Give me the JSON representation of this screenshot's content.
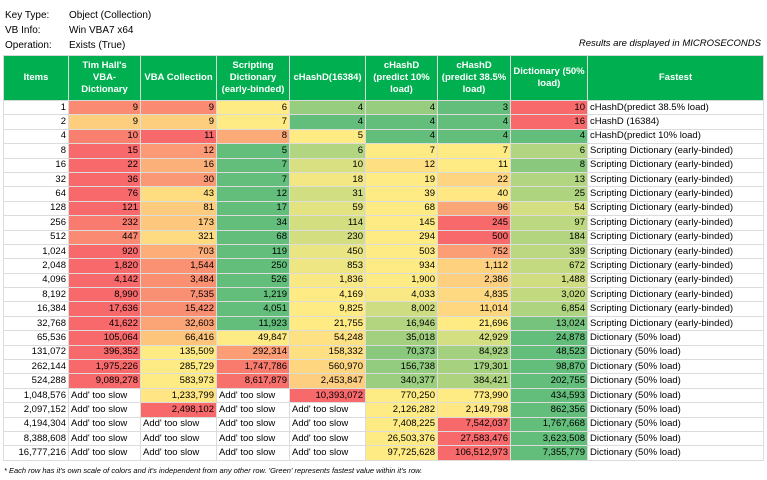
{
  "info": [
    {
      "label": "Key Type:",
      "value": "Object (Collection)"
    },
    {
      "label": "VB Info:",
      "value": "Win VBA7 x64"
    },
    {
      "label": "Operation:",
      "value": "Exists (True)"
    }
  ],
  "note_units": "Results are displayed in MICROSECONDS",
  "table": {
    "header": [
      "Items",
      "Tim Hall's VBA-Dictionary",
      "VBA Collection",
      "Scripting Dictionary (early-binded)",
      "cHashD(16384)",
      "cHashD (predict 10% load)",
      "cHashD (predict 38.5% load)",
      "Dictionary (50% load)",
      "Fastest"
    ],
    "rows": [
      [
        "1",
        "9",
        "9",
        "6",
        "4",
        "4",
        "3",
        "10",
        "cHashD(predict 38.5% load)"
      ],
      [
        "2",
        "9",
        "9",
        "7",
        "4",
        "4",
        "4",
        "16",
        "cHashD (16384)"
      ],
      [
        "4",
        "10",
        "11",
        "8",
        "5",
        "4",
        "4",
        "4",
        "cHashD(predict 10% load)"
      ],
      [
        "8",
        "15",
        "12",
        "5",
        "6",
        "7",
        "7",
        "6",
        "Scripting Dictionary (early-binded)"
      ],
      [
        "16",
        "22",
        "16",
        "7",
        "10",
        "12",
        "11",
        "8",
        "Scripting Dictionary (early-binded)"
      ],
      [
        "32",
        "36",
        "30",
        "7",
        "18",
        "19",
        "22",
        "13",
        "Scripting Dictionary (early-binded)"
      ],
      [
        "64",
        "76",
        "43",
        "12",
        "31",
        "39",
        "40",
        "25",
        "Scripting Dictionary (early-binded)"
      ],
      [
        "128",
        "121",
        "81",
        "17",
        "59",
        "68",
        "96",
        "54",
        "Scripting Dictionary (early-binded)"
      ],
      [
        "256",
        "232",
        "173",
        "34",
        "114",
        "145",
        "245",
        "97",
        "Scripting Dictionary (early-binded)"
      ],
      [
        "512",
        "447",
        "321",
        "68",
        "230",
        "294",
        "500",
        "184",
        "Scripting Dictionary (early-binded)"
      ],
      [
        "1,024",
        "920",
        "703",
        "119",
        "450",
        "503",
        "752",
        "339",
        "Scripting Dictionary (early-binded)"
      ],
      [
        "2,048",
        "1,820",
        "1,544",
        "250",
        "853",
        "934",
        "1,112",
        "672",
        "Scripting Dictionary (early-binded)"
      ],
      [
        "4,096",
        "4,142",
        "3,484",
        "526",
        "1,836",
        "1,900",
        "2,386",
        "1,488",
        "Scripting Dictionary (early-binded)"
      ],
      [
        "8,192",
        "8,990",
        "7,535",
        "1,219",
        "4,169",
        "4,033",
        "4,835",
        "3,020",
        "Scripting Dictionary (early-binded)"
      ],
      [
        "16,384",
        "17,636",
        "15,422",
        "4,051",
        "9,825",
        "8,002",
        "11,014",
        "6,854",
        "Scripting Dictionary (early-binded)"
      ],
      [
        "32,768",
        "41,622",
        "32,603",
        "11,923",
        "21,755",
        "16,946",
        "21,696",
        "13,024",
        "Scripting Dictionary (early-binded)"
      ],
      [
        "65,536",
        "105,064",
        "66,416",
        "49,847",
        "54,248",
        "35,018",
        "42,929",
        "24,878",
        "Dictionary (50% load)"
      ],
      [
        "131,072",
        "396,352",
        "135,509",
        "292,314",
        "158,332",
        "70,373",
        "84,923",
        "48,523",
        "Dictionary (50% load)"
      ],
      [
        "262,144",
        "1,975,226",
        "285,729",
        "1,747,786",
        "560,970",
        "156,738",
        "179,301",
        "98,870",
        "Dictionary (50% load)"
      ],
      [
        "524,288",
        "9,089,278",
        "583,973",
        "8,617,879",
        "2,453,847",
        "340,377",
        "384,421",
        "202,755",
        "Dictionary (50% load)"
      ],
      [
        "1,048,576",
        "Add' too slow",
        "1,233,799",
        "Add' too slow",
        "10,393,072",
        "770,250",
        "773,990",
        "434,593",
        "Dictionary (50% load)"
      ],
      [
        "2,097,152",
        "Add' too slow",
        "2,498,102",
        "Add' too slow",
        "Add' too slow",
        "2,126,282",
        "2,149,798",
        "862,356",
        "Dictionary (50% load)"
      ],
      [
        "4,194,304",
        "Add' too slow",
        "Add' too slow",
        "Add' too slow",
        "Add' too slow",
        "7,408,225",
        "7,542,037",
        "1,767,668",
        "Dictionary (50% load)"
      ],
      [
        "8,388,608",
        "Add' too slow",
        "Add' too slow",
        "Add' too slow",
        "Add' too slow",
        "26,503,376",
        "27,583,476",
        "3,623,508",
        "Dictionary (50% load)"
      ],
      [
        "16,777,216",
        "Add' too slow",
        "Add' too slow",
        "Add' too slow",
        "Add' too slow",
        "97,725,628",
        "106,512,973",
        "7,355,779",
        "Dictionary (50% load)"
      ]
    ]
  },
  "footnote": "* Each row has it's own scale of colors and it's independent from any other row. 'Green' represents fastest value within it's row."
}
